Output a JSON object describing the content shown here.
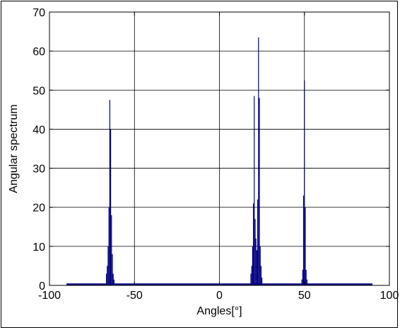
{
  "chart_data": {
    "type": "bar",
    "title": "",
    "xlabel": "Angles[°]",
    "ylabel": "Angular spectrum",
    "xlim": [
      -100,
      100
    ],
    "ylim": [
      0,
      70
    ],
    "xticks": [
      -100,
      -50,
      0,
      50,
      100
    ],
    "yticks": [
      0,
      10,
      20,
      30,
      40,
      50,
      60,
      70
    ],
    "grid": true,
    "colors": {
      "bars": "#000080",
      "grid": "#000000",
      "axes": "#000000"
    },
    "baseline": {
      "x_range": [
        -90,
        90
      ],
      "value": 0.5
    },
    "series": [
      {
        "peaks": [
          {
            "x": -66.5,
            "y": 3
          },
          {
            "x": -66,
            "y": 5
          },
          {
            "x": -65.5,
            "y": 10
          },
          {
            "x": -65,
            "y": 20
          },
          {
            "x": -64.5,
            "y": 47.5
          },
          {
            "x": -64,
            "y": 40
          },
          {
            "x": -63.5,
            "y": 18
          },
          {
            "x": -63,
            "y": 8
          },
          {
            "x": -62.5,
            "y": 3
          },
          {
            "x": -62,
            "y": 1.5
          },
          {
            "x": 18.5,
            "y": 3
          },
          {
            "x": 19,
            "y": 5
          },
          {
            "x": 19.5,
            "y": 10
          },
          {
            "x": 20,
            "y": 21
          },
          {
            "x": 20.5,
            "y": 48.5
          },
          {
            "x": 21,
            "y": 17
          },
          {
            "x": 21.5,
            "y": 12
          },
          {
            "x": 22,
            "y": 9
          },
          {
            "x": 22.5,
            "y": 22
          },
          {
            "x": 23,
            "y": 63.5
          },
          {
            "x": 23.5,
            "y": 48
          },
          {
            "x": 24,
            "y": 10
          },
          {
            "x": 24.5,
            "y": 5
          },
          {
            "x": 25,
            "y": 2
          },
          {
            "x": 48.5,
            "y": 1.5
          },
          {
            "x": 49,
            "y": 4
          },
          {
            "x": 49.5,
            "y": 23
          },
          {
            "x": 50,
            "y": 52.5
          },
          {
            "x": 50.5,
            "y": 20
          },
          {
            "x": 51,
            "y": 4
          },
          {
            "x": 51.5,
            "y": 1.5
          }
        ]
      }
    ]
  }
}
